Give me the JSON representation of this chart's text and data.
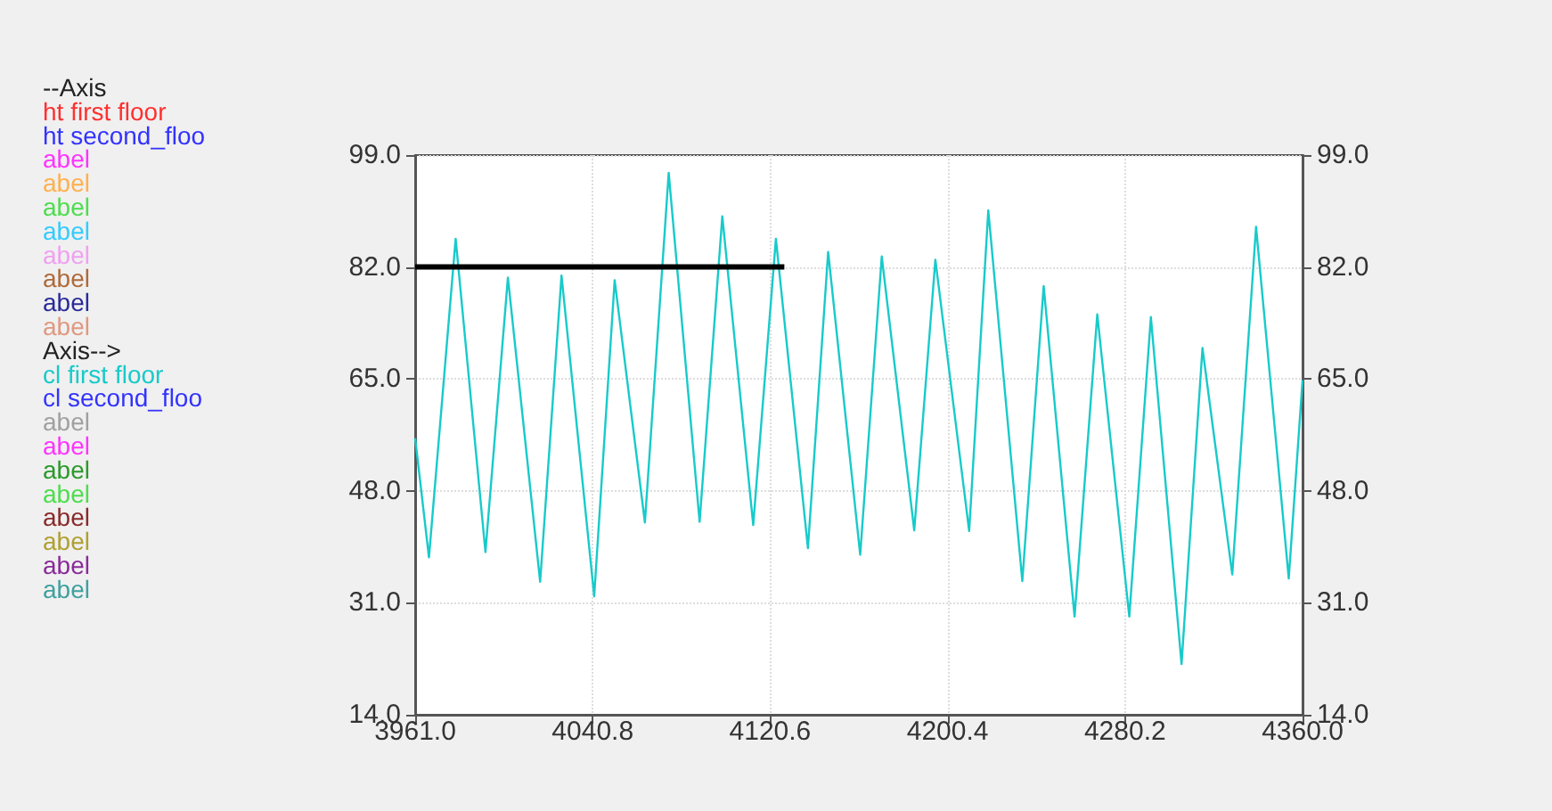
{
  "chart_data": {
    "type": "line",
    "series": [
      {
        "name": "ht first floor",
        "color": "#ff3030"
      },
      {
        "name": "ht second_floo",
        "color": "#3333ff"
      },
      {
        "name": "abel",
        "color": "#ff33ff"
      },
      {
        "name": "abel",
        "color": "#ffb04d"
      },
      {
        "name": "abel",
        "color": "#4ddd4d"
      },
      {
        "name": "abel",
        "color": "#33ccff"
      },
      {
        "name": "abel",
        "color": "#f0a0f0"
      },
      {
        "name": "abel",
        "color": "#b06a3a"
      },
      {
        "name": "abel",
        "color": "#2a2a9a"
      },
      {
        "name": "abel",
        "color": "#e09880"
      },
      {
        "name": "cl first floor",
        "color": "#18caca",
        "axis": "y2",
        "x": [
          3961.0,
          3967.2,
          3979.2,
          3992.6,
          4002.7,
          4017.2,
          4026.8,
          4041.5,
          4050.7,
          4064.3,
          4075.0,
          4088.9,
          4099.1,
          4113.0,
          4123.2,
          4137.6,
          4146.7,
          4161.1,
          4170.8,
          4185.4,
          4194.9,
          4210.1,
          4218.7,
          4234.0,
          4243.6,
          4257.5,
          4267.7,
          4282.1,
          4291.8,
          4305.6,
          4315.0,
          4328.4,
          4339.1,
          4353.8,
          4360.0
        ],
        "values": [
          56,
          37.9,
          86.3,
          38.7,
          80.4,
          34.2,
          80.7,
          32.0,
          80.0,
          43.2,
          96.3,
          43.3,
          89.7,
          42.8,
          86.3,
          39.3,
          84.3,
          38.3,
          83.6,
          42.0,
          83.1,
          41.9,
          90.6,
          34.3,
          79.1,
          28.9,
          74.8,
          28.9,
          74.4,
          21.7,
          69.7,
          35.3,
          88.1,
          34.7,
          64.8
        ]
      },
      {
        "name": "cl second_floo",
        "color": "#3333ff",
        "axis": "y2"
      },
      {
        "name": "abel",
        "color": "#a0a0a0",
        "axis": "y2"
      },
      {
        "name": "abel",
        "color": "#ff33ff",
        "axis": "y2"
      },
      {
        "name": "abel",
        "color": "#2a9a2a",
        "axis": "y2"
      },
      {
        "name": "abel",
        "color": "#4ddd4d",
        "axis": "y2"
      },
      {
        "name": "abel",
        "color": "#8a2a2a",
        "axis": "y2"
      },
      {
        "name": "abel",
        "color": "#b0a030",
        "axis": "y2"
      },
      {
        "name": "abel",
        "color": "#8a2a9a",
        "axis": "y2"
      },
      {
        "name": "abel",
        "color": "#40a0a0",
        "axis": "y2"
      },
      {
        "color": "#000000",
        "x": [
          3961,
          4127
        ],
        "values": [
          82,
          82
        ]
      }
    ],
    "annotations": [
      "--Axis",
      "Axis-->"
    ],
    "xlim": [
      3961,
      4360
    ],
    "xticks": [
      {
        "value": 3961,
        "label": "3961.0"
      },
      4040.8,
      4120.6,
      4200.4,
      4280.2,
      {
        "value": 4360,
        "label": "4360.0"
      }
    ],
    "ylim": [
      14,
      99
    ],
    "yticks": [
      {
        "value": 14,
        "label": "14.0"
      },
      {
        "value": 31,
        "label": "31.0"
      },
      {
        "value": 48,
        "label": "48.0"
      },
      {
        "value": 65,
        "label": "65.0"
      },
      {
        "value": 82,
        "label": "82.0"
      },
      {
        "value": 99,
        "label": "99.0"
      }
    ],
    "y2lim": [
      14,
      99
    ],
    "y2ticks": [
      {
        "value": 14,
        "label": "14.0"
      },
      {
        "value": 31,
        "label": "31.0"
      },
      {
        "value": 48,
        "label": "48.0"
      },
      {
        "value": 65,
        "label": "65.0"
      },
      {
        "value": 82,
        "label": "82.0"
      },
      {
        "value": 99,
        "label": "99.0"
      }
    ],
    "grid": true,
    "legend": "left"
  }
}
